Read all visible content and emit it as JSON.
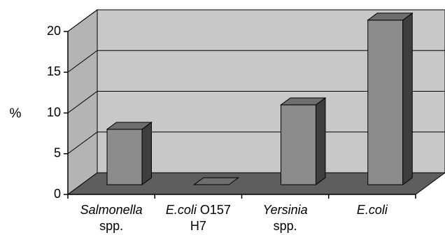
{
  "chart_data": {
    "type": "bar",
    "title": "",
    "xlabel": "",
    "ylabel": "%",
    "ylim": [
      0,
      20
    ],
    "yticks": [
      0,
      5,
      10,
      15,
      20
    ],
    "grid": true,
    "categories": [
      {
        "lines": [
          [
            {
              "text": "Salmonella",
              "italic": true
            }
          ],
          [
            {
              "text": "spp.",
              "italic": false
            }
          ]
        ]
      },
      {
        "lines": [
          [
            {
              "text": "E.coli",
              "italic": true
            },
            {
              "text": " O157",
              "italic": false
            }
          ],
          [
            {
              "text": "H7",
              "italic": false
            }
          ]
        ]
      },
      {
        "lines": [
          [
            {
              "text": "Yersinia",
              "italic": true
            }
          ],
          [
            {
              "text": "spp.",
              "italic": false
            }
          ]
        ]
      },
      {
        "lines": [
          [
            {
              "text": "E.coli",
              "italic": true
            }
          ]
        ]
      }
    ],
    "values": [
      6.8,
      0,
      9.8,
      20.2
    ],
    "colors": {
      "wall": "#c8c8c8",
      "side_wall": "#b4b4b4",
      "floor": "#5e5e5e",
      "bar_front": "#8c8c8c",
      "bar_top": "#6e6e6e",
      "bar_side": "#3e3e3e",
      "grid": "#000000"
    }
  }
}
